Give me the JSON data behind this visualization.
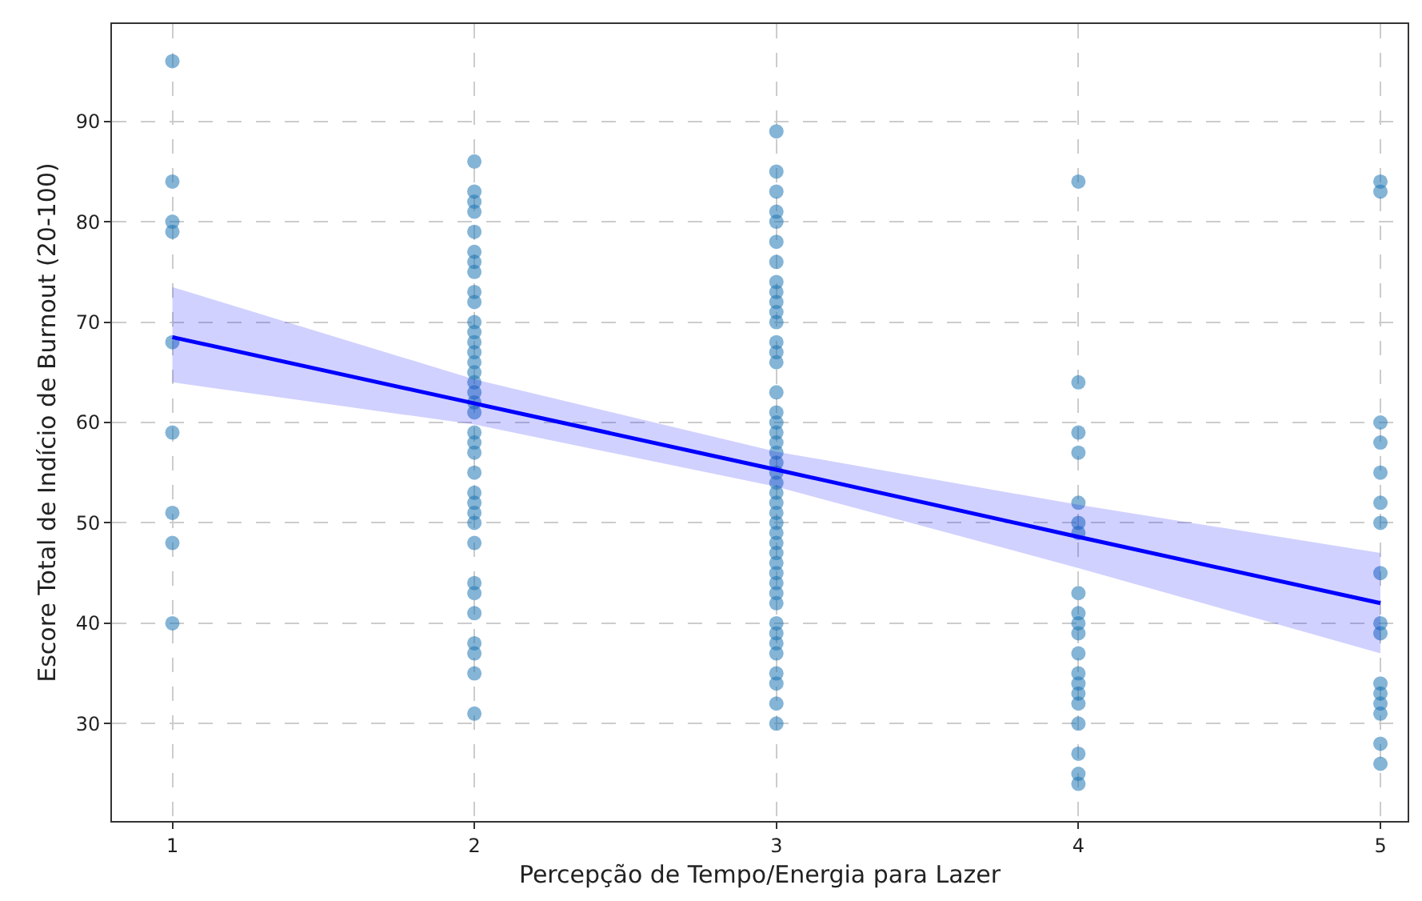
{
  "chart_data": {
    "type": "scatter",
    "xlabel": "Percepção de Tempo/Energia para Lazer",
    "ylabel": "Escore Total de Indício de Burnout (20-100)",
    "xlim": [
      0.8,
      5.09
    ],
    "xticks": [
      1,
      2,
      3,
      4,
      5
    ],
    "ylim": [
      20.3,
      99.7
    ],
    "yticks": [
      30,
      40,
      50,
      60,
      70,
      80,
      90
    ],
    "grid": true,
    "series": [
      {
        "marker": "circle",
        "color": "#1f77b4",
        "x": [
          1,
          1,
          1,
          1,
          1,
          1,
          1,
          1,
          1,
          2,
          2,
          2,
          2,
          2,
          2,
          2,
          2,
          2,
          2,
          2,
          2,
          2,
          2,
          2,
          2,
          2,
          2,
          2,
          2,
          2,
          2,
          2,
          2,
          2,
          2,
          2,
          2,
          2,
          2,
          2,
          2,
          2,
          2,
          2,
          2,
          3,
          3,
          3,
          3,
          3,
          3,
          3,
          3,
          3,
          3,
          3,
          3,
          3,
          3,
          3,
          3,
          3,
          3,
          3,
          3,
          3,
          3,
          3,
          3,
          3,
          3,
          3,
          3,
          3,
          3,
          3,
          3,
          3,
          3,
          3,
          3,
          3,
          3,
          3,
          3,
          3,
          3,
          3,
          3,
          4,
          4,
          4,
          4,
          4,
          4,
          4,
          4,
          4,
          4,
          4,
          4,
          4,
          4,
          4,
          4,
          4,
          4,
          4,
          4,
          5,
          5,
          5,
          5,
          5,
          5,
          5,
          5,
          5,
          5,
          5,
          5,
          5,
          5,
          5,
          5
        ],
        "values": [
          96,
          84,
          80,
          79,
          68,
          59,
          51,
          48,
          40,
          86,
          83,
          82,
          81,
          79,
          77,
          76,
          75,
          73,
          72,
          70,
          69,
          68,
          67,
          66,
          65,
          64,
          63,
          62,
          61,
          59,
          58,
          57,
          55,
          53,
          52,
          51,
          50,
          48,
          44,
          43,
          41,
          38,
          37,
          35,
          31,
          89,
          85,
          83,
          81,
          80,
          78,
          76,
          74,
          73,
          72,
          71,
          70,
          68,
          67,
          66,
          63,
          61,
          60,
          59,
          58,
          57,
          56,
          55,
          54,
          53,
          52,
          51,
          50,
          49,
          48,
          47,
          46,
          45,
          44,
          43,
          42,
          40,
          39,
          38,
          37,
          35,
          34,
          32,
          30,
          84,
          64,
          59,
          57,
          52,
          50,
          49,
          43,
          41,
          40,
          39,
          37,
          35,
          34,
          33,
          32,
          30,
          27,
          25,
          24,
          84,
          83,
          60,
          58,
          55,
          52,
          50,
          45,
          40,
          39,
          34,
          33,
          32,
          31,
          28,
          26
        ]
      },
      {
        "type": "line",
        "marker": "none",
        "color": "#0000ff",
        "x": [
          1,
          2,
          3,
          4,
          5
        ],
        "values": [
          68.5,
          61.9,
          55.3,
          48.6,
          42
        ],
        "lower": [
          64,
          59.8,
          53.6,
          45.5,
          37
        ],
        "upper": [
          73.5,
          64.3,
          57.1,
          51.8,
          47
        ]
      }
    ]
  }
}
